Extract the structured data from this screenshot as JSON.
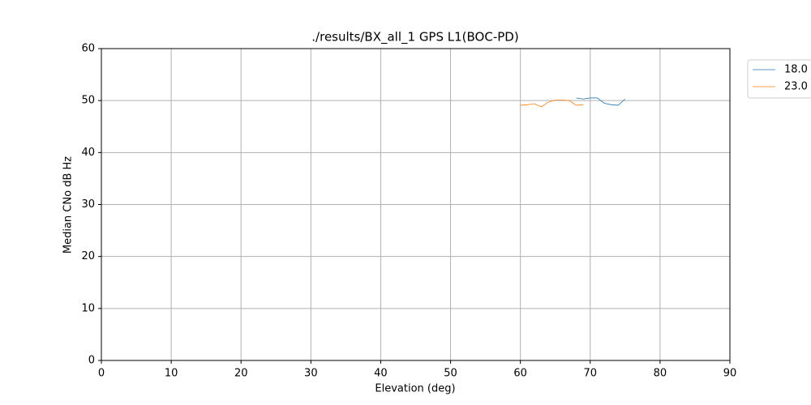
{
  "chart_data": {
    "type": "line",
    "title": "./results/BX_all_1 GPS L1(BOC-PD)",
    "xlabel": "Elevation (deg)",
    "ylabel": "Median CNo dB Hz",
    "xlim": [
      0,
      90
    ],
    "ylim": [
      0,
      60
    ],
    "xticks": [
      0,
      10,
      20,
      30,
      40,
      50,
      60,
      70,
      80,
      90
    ],
    "yticks": [
      0,
      10,
      20,
      30,
      40,
      50,
      60
    ],
    "grid": true,
    "legend": "outside-upper-right",
    "series": [
      {
        "name": "18.0",
        "color": "#1f77b4",
        "x": [
          68,
          69,
          70,
          71,
          72,
          73,
          74,
          75
        ],
        "values": [
          50.5,
          50.3,
          50.5,
          50.5,
          49.5,
          49.2,
          49.1,
          50.3
        ]
      },
      {
        "name": "23.0",
        "color": "#ff7f0e",
        "x": [
          60,
          61,
          62,
          63,
          64,
          65,
          66,
          67,
          68,
          69
        ],
        "values": [
          49.1,
          49.2,
          49.4,
          48.8,
          49.7,
          50.1,
          50.1,
          50.0,
          49.1,
          49.2
        ]
      }
    ]
  }
}
